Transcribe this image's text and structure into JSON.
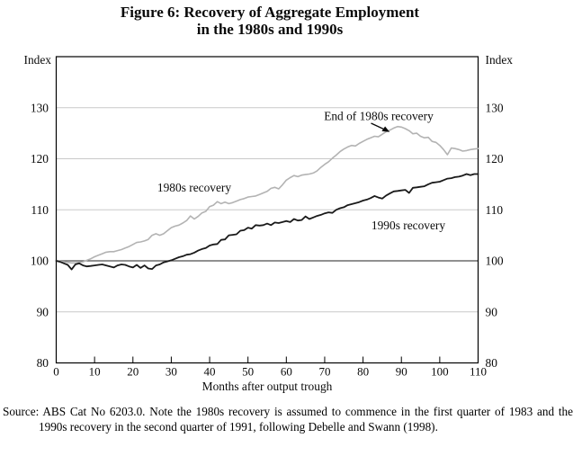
{
  "title": {
    "line1": "Figure 6: Recovery of Aggregate Employment",
    "line2": "in the 1980s and 1990s"
  },
  "chart_data": {
    "type": "line",
    "xlabel": "Months after output trough",
    "ylabel_left": "Index",
    "ylabel_right": "Index",
    "xlim": [
      0,
      110
    ],
    "ylim": [
      80,
      140
    ],
    "xticks": [
      0,
      10,
      20,
      30,
      40,
      50,
      60,
      70,
      80,
      90,
      100,
      110
    ],
    "yticks": [
      80,
      90,
      100,
      110,
      120,
      130
    ],
    "grid": "horizontal",
    "reference_line": 100,
    "x_start": 0,
    "x_step": 1,
    "annotation": {
      "text": "End of 1980s recovery"
    },
    "series": [
      {
        "name": "1980s recovery",
        "color": "#b3b3b3",
        "width": 1.6,
        "values": [
          100,
          99.9,
          99.8,
          99.7,
          99.6,
          99.6,
          99.7,
          99.8,
          100.1,
          100.4,
          100.8,
          101.1,
          101.4,
          101.7,
          101.8,
          101.8,
          102,
          102.2,
          102.5,
          102.8,
          103.2,
          103.6,
          103.7,
          103.9,
          104.2,
          105,
          105.3,
          105,
          105.3,
          105.9,
          106.5,
          106.8,
          107,
          107.4,
          107.9,
          108.8,
          108.2,
          108.7,
          109.4,
          109.7,
          110.6,
          110.9,
          111.6,
          111.2,
          111.5,
          111.2,
          111.4,
          111.7,
          112,
          112.2,
          112.5,
          112.6,
          112.7,
          113,
          113.3,
          113.6,
          114.2,
          114.4,
          114.1,
          114.9,
          115.8,
          116.3,
          116.7,
          116.5,
          116.8,
          116.9,
          117,
          117.2,
          117.6,
          118.3,
          118.9,
          119.4,
          120.1,
          120.7,
          121.4,
          121.9,
          122.3,
          122.6,
          122.5,
          123,
          123.4,
          123.8,
          124.1,
          124.4,
          124.3,
          124.8,
          125.3,
          125.6,
          126,
          126.3,
          126.2,
          125.9,
          125.5,
          124.9,
          125,
          124.4,
          124.1,
          124.2,
          123.4,
          123.2,
          122.6,
          121.8,
          120.8,
          122.1,
          122,
          121.8,
          121.5,
          121.6,
          121.8,
          121.9,
          122
        ]
      },
      {
        "name": "1990s recovery",
        "color": "#1a1a1a",
        "width": 1.8,
        "values": [
          100,
          99.8,
          99.5,
          99.2,
          98.3,
          99.3,
          99.5,
          99.1,
          98.9,
          99,
          99.1,
          99.2,
          99.3,
          99.1,
          98.9,
          98.7,
          99.1,
          99.3,
          99.2,
          98.9,
          98.7,
          99.2,
          98.6,
          99.1,
          98.5,
          98.4,
          99.1,
          99.3,
          99.7,
          99.9,
          100.1,
          100.4,
          100.7,
          100.9,
          101.2,
          101.3,
          101.6,
          102,
          102.3,
          102.5,
          103,
          103.2,
          103.3,
          104.1,
          104.2,
          105,
          105.1,
          105.2,
          105.9,
          106,
          106.5,
          106.3,
          107,
          106.9,
          107,
          107.3,
          107,
          107.5,
          107.4,
          107.6,
          107.8,
          107.6,
          108.2,
          107.9,
          108,
          108.7,
          108.2,
          108.5,
          108.8,
          109,
          109.3,
          109.5,
          109.4,
          110,
          110.3,
          110.5,
          110.9,
          111.1,
          111.3,
          111.5,
          111.8,
          112,
          112.3,
          112.7,
          112.4,
          112.2,
          112.8,
          113.2,
          113.6,
          113.7,
          113.8,
          113.9,
          113.3,
          114.3,
          114.4,
          114.5,
          114.6,
          115,
          115.3,
          115.4,
          115.5,
          115.8,
          116.1,
          116.2,
          116.4,
          116.5,
          116.7,
          117,
          116.8,
          117,
          117
        ]
      }
    ],
    "colors": {
      "frame": "#000000",
      "gridline": "#c9c9c9",
      "reference_line": "#4d4d4d"
    }
  },
  "source_note": {
    "text": "Source: ABS Cat No 6203.0. Note the 1980s recovery is assumed to commence in the first quarter of 1983 and the 1990s recovery in the second quarter of 1991, following Debelle and Swann (1998)."
  }
}
